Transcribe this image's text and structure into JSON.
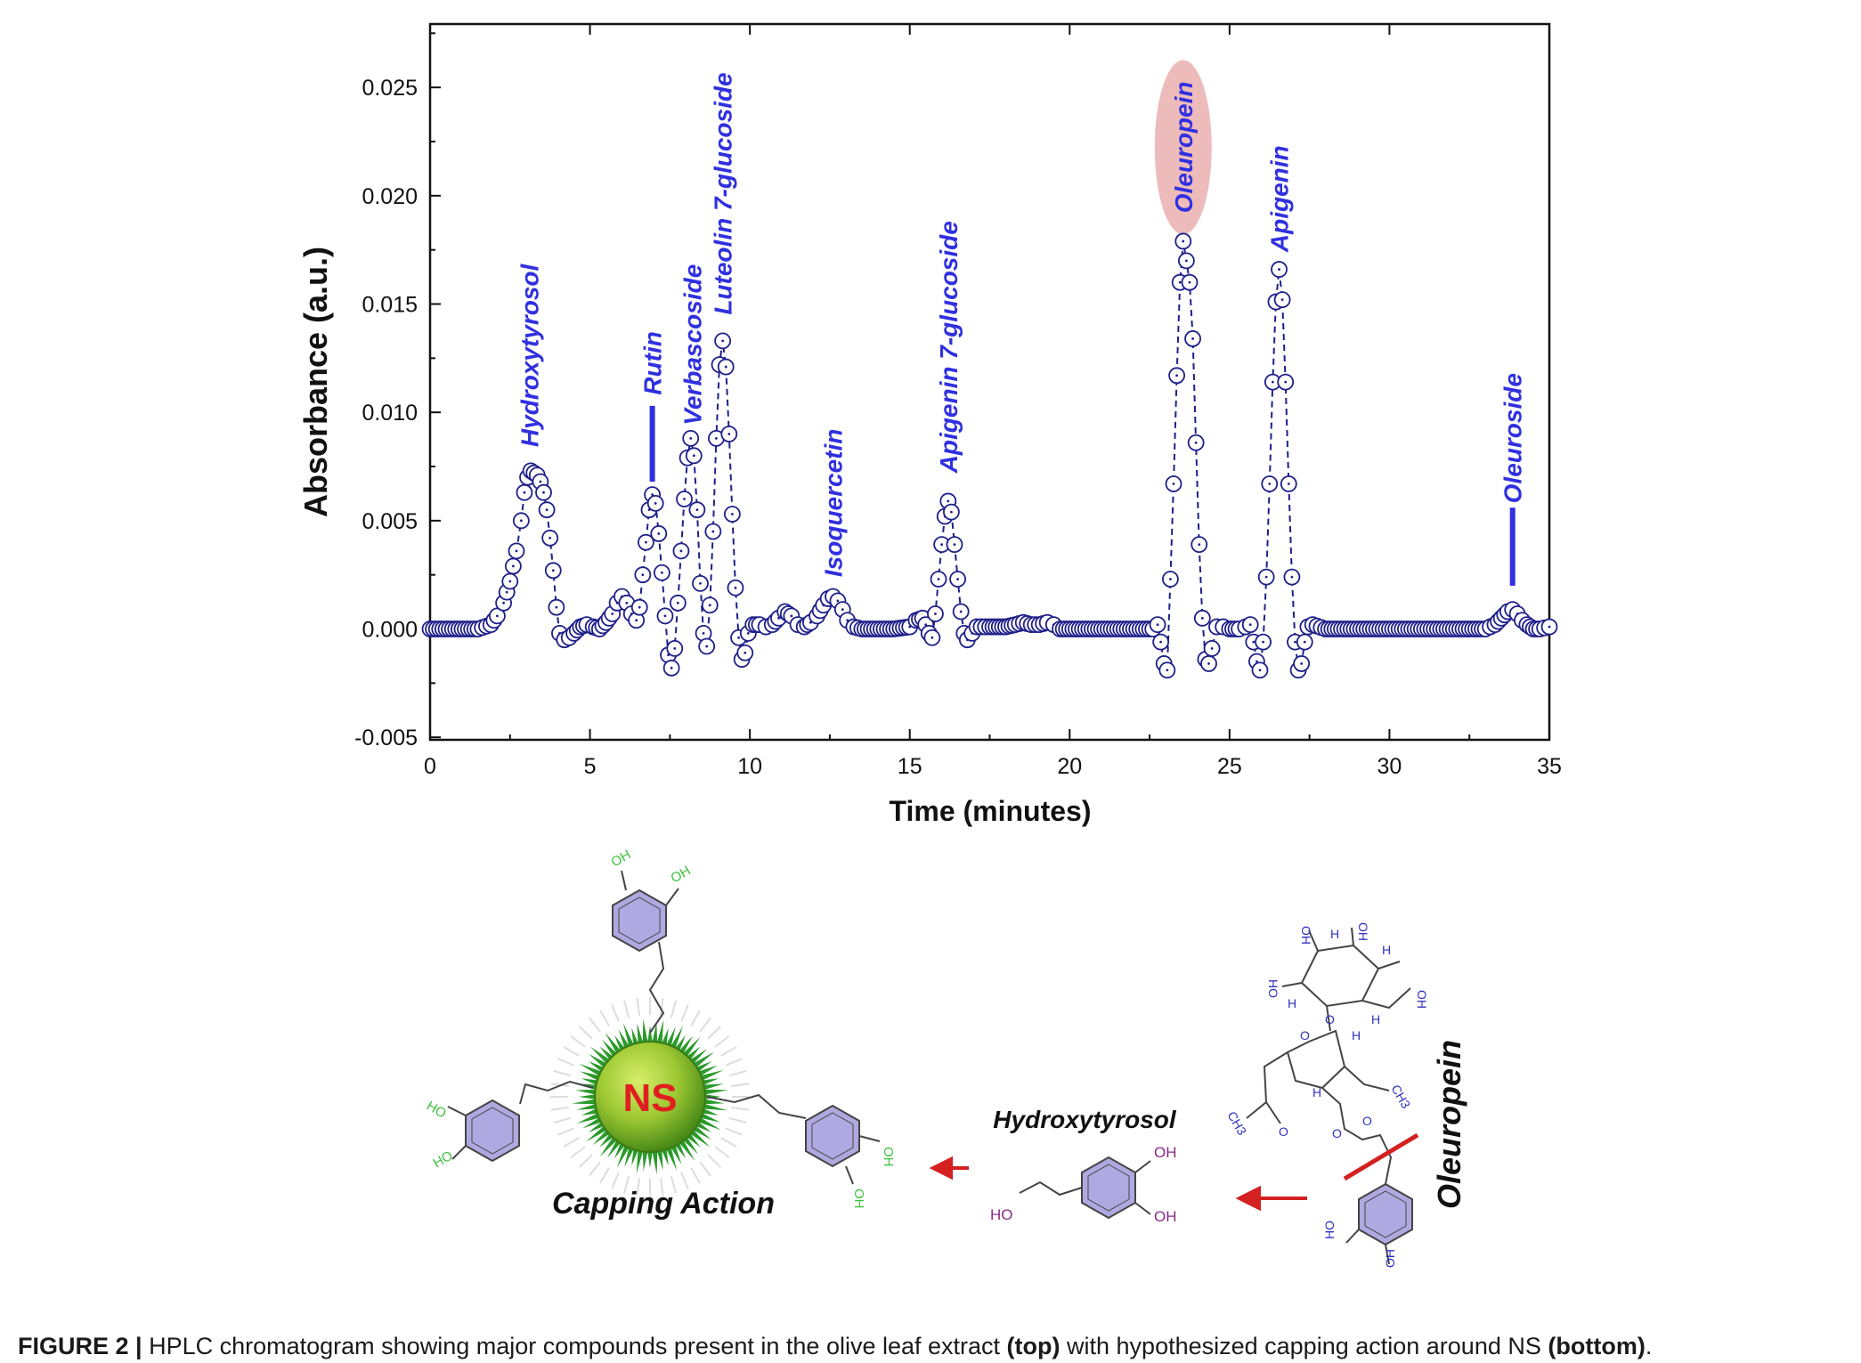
{
  "chart_data": {
    "type": "line",
    "title": "",
    "xlabel": "Time (minutes)",
    "ylabel": "Absorbance (a.u.)",
    "xlim": [
      0,
      35
    ],
    "ylim": [
      -0.005,
      0.028
    ],
    "xticks": [
      0,
      5,
      10,
      15,
      20,
      25,
      30,
      35
    ],
    "xtick_labels": [
      "0",
      "5",
      "10",
      "15",
      "20",
      "25",
      "30",
      "35"
    ],
    "yticks": [
      -0.005,
      0.0,
      0.005,
      0.01,
      0.015,
      0.02,
      0.025
    ],
    "ytick_labels": [
      "-0.005",
      "0.000",
      "0.005",
      "0.010",
      "0.015",
      "0.020",
      "0.025"
    ],
    "grid": false,
    "marker": "open-circle",
    "line_style": "dashed",
    "series_color": "#1f1f8a",
    "label_color": "#3030e0",
    "highlight_color": "#eebbbb",
    "series": [
      {
        "name": "",
        "points": [
          [
            0,
            0
          ],
          [
            1.5,
            0
          ],
          [
            1.9,
            0.0002
          ],
          [
            2.1,
            0.0006
          ],
          [
            2.3,
            0.0012
          ],
          [
            2.5,
            0.0022
          ],
          [
            2.7,
            0.0036
          ],
          [
            2.85,
            0.005
          ],
          [
            2.95,
            0.0063
          ],
          [
            3.05,
            0.007
          ],
          [
            3.15,
            0.0073
          ],
          [
            3.25,
            0.0072
          ],
          [
            3.35,
            0.0071
          ],
          [
            3.45,
            0.0068
          ],
          [
            3.55,
            0.0063
          ],
          [
            3.65,
            0.0055
          ],
          [
            3.75,
            0.0042
          ],
          [
            3.85,
            0.0027
          ],
          [
            3.95,
            0.001
          ],
          [
            4.05,
            -0.0002
          ],
          [
            4.2,
            -0.0005
          ],
          [
            4.35,
            -0.0004
          ],
          [
            4.5,
            -0.0002
          ],
          [
            4.7,
            0.0001
          ],
          [
            4.9,
            0.0002
          ],
          [
            5.1,
            0.0001
          ],
          [
            5.3,
            0
          ],
          [
            5.5,
            0.0003
          ],
          [
            5.7,
            0.0007
          ],
          [
            5.85,
            0.0012
          ],
          [
            6.0,
            0.0015
          ],
          [
            6.15,
            0.0012
          ],
          [
            6.3,
            0.0007
          ],
          [
            6.45,
            0.0004
          ],
          [
            6.55,
            0.001
          ],
          [
            6.65,
            0.0025
          ],
          [
            6.75,
            0.004
          ],
          [
            6.85,
            0.0055
          ],
          [
            6.95,
            0.0062
          ],
          [
            7.05,
            0.0058
          ],
          [
            7.15,
            0.0044
          ],
          [
            7.25,
            0.0026
          ],
          [
            7.35,
            0.0006
          ],
          [
            7.45,
            -0.0012
          ],
          [
            7.55,
            -0.0018
          ],
          [
            7.65,
            -0.0009
          ],
          [
            7.75,
            0.0012
          ],
          [
            7.85,
            0.0036
          ],
          [
            7.95,
            0.006
          ],
          [
            8.05,
            0.0079
          ],
          [
            8.15,
            0.0088
          ],
          [
            8.25,
            0.008
          ],
          [
            8.35,
            0.0055
          ],
          [
            8.45,
            0.0021
          ],
          [
            8.55,
            -0.0002
          ],
          [
            8.65,
            -0.0008
          ],
          [
            8.75,
            0.0011
          ],
          [
            8.85,
            0.0045
          ],
          [
            8.95,
            0.0088
          ],
          [
            9.05,
            0.0122
          ],
          [
            9.15,
            0.0133
          ],
          [
            9.25,
            0.0121
          ],
          [
            9.35,
            0.009
          ],
          [
            9.45,
            0.0053
          ],
          [
            9.55,
            0.0019
          ],
          [
            9.65,
            -0.0004
          ],
          [
            9.75,
            -0.0014
          ],
          [
            9.85,
            -0.0011
          ],
          [
            9.95,
            -0.0002
          ],
          [
            10.1,
            0.0002
          ],
          [
            10.3,
            0.0002
          ],
          [
            10.5,
            0.0001
          ],
          [
            10.7,
            0.0002
          ],
          [
            10.9,
            0.0005
          ],
          [
            11.1,
            0.0008
          ],
          [
            11.3,
            0.0006
          ],
          [
            11.5,
            0.0002
          ],
          [
            11.7,
            0.0001
          ],
          [
            11.9,
            0.0003
          ],
          [
            12.1,
            0.0006
          ],
          [
            12.3,
            0.0011
          ],
          [
            12.45,
            0.0014
          ],
          [
            12.6,
            0.0015
          ],
          [
            12.75,
            0.0013
          ],
          [
            12.9,
            0.0009
          ],
          [
            13.05,
            0.0004
          ],
          [
            13.25,
            0.0001
          ],
          [
            13.5,
            0
          ],
          [
            14.5,
            0
          ],
          [
            15.0,
            0.0001
          ],
          [
            15.2,
            0.0004
          ],
          [
            15.4,
            0.0005
          ],
          [
            15.5,
            0.0002
          ],
          [
            15.6,
            -0.0002
          ],
          [
            15.7,
            -0.0004
          ],
          [
            15.8,
            0.0007
          ],
          [
            15.9,
            0.0023
          ],
          [
            16.0,
            0.0039
          ],
          [
            16.1,
            0.0052
          ],
          [
            16.2,
            0.0059
          ],
          [
            16.3,
            0.0054
          ],
          [
            16.4,
            0.0039
          ],
          [
            16.5,
            0.0023
          ],
          [
            16.6,
            0.0008
          ],
          [
            16.7,
            -0.0002
          ],
          [
            16.8,
            -0.0005
          ],
          [
            16.95,
            -0.0002
          ],
          [
            17.1,
            0.0001
          ],
          [
            17.5,
            0.0001
          ],
          [
            18.0,
            0.0001
          ],
          [
            18.3,
            0.0002
          ],
          [
            18.55,
            0.0003
          ],
          [
            18.8,
            0.0002
          ],
          [
            19.05,
            0.0002
          ],
          [
            19.3,
            0.0003
          ],
          [
            19.5,
            0.0002
          ],
          [
            19.7,
            0
          ],
          [
            20.5,
            0
          ],
          [
            22.6,
            0
          ],
          [
            22.75,
            0.0002
          ],
          [
            22.85,
            -0.0006
          ],
          [
            22.95,
            -0.0016
          ],
          [
            23.05,
            -0.0019
          ],
          [
            23.15,
            0.0023
          ],
          [
            23.25,
            0.0067
          ],
          [
            23.35,
            0.0117
          ],
          [
            23.45,
            0.016
          ],
          [
            23.55,
            0.0179
          ],
          [
            23.65,
            0.017
          ],
          [
            23.75,
            0.016
          ],
          [
            23.85,
            0.0134
          ],
          [
            23.95,
            0.0086
          ],
          [
            24.05,
            0.0039
          ],
          [
            24.15,
            0.0005
          ],
          [
            24.25,
            -0.0014
          ],
          [
            24.35,
            -0.0016
          ],
          [
            24.45,
            -0.0009
          ],
          [
            24.6,
            0.0001
          ],
          [
            24.8,
            0.0001
          ],
          [
            25.0,
            0
          ],
          [
            25.3,
            0
          ],
          [
            25.5,
            0.0001
          ],
          [
            25.65,
            0.0002
          ],
          [
            25.75,
            -0.0006
          ],
          [
            25.85,
            -0.0015
          ],
          [
            25.95,
            -0.0019
          ],
          [
            26.05,
            -0.0006
          ],
          [
            26.15,
            0.0024
          ],
          [
            26.25,
            0.0067
          ],
          [
            26.35,
            0.0114
          ],
          [
            26.45,
            0.0151
          ],
          [
            26.55,
            0.0166
          ],
          [
            26.65,
            0.0152
          ],
          [
            26.75,
            0.0114
          ],
          [
            26.85,
            0.0067
          ],
          [
            26.95,
            0.0024
          ],
          [
            27.05,
            -0.0006
          ],
          [
            27.15,
            -0.0019
          ],
          [
            27.25,
            -0.0016
          ],
          [
            27.35,
            -0.0006
          ],
          [
            27.45,
            0.0001
          ],
          [
            27.6,
            0.0002
          ],
          [
            28.0,
            0
          ],
          [
            33.0,
            0
          ],
          [
            33.3,
            0.0002
          ],
          [
            33.5,
            0.0005
          ],
          [
            33.7,
            0.0008
          ],
          [
            33.85,
            0.0009
          ],
          [
            34.0,
            0.0007
          ],
          [
            34.15,
            0.0004
          ],
          [
            34.3,
            0.0002
          ],
          [
            34.5,
            0
          ],
          [
            34.7,
            0
          ],
          [
            35.0,
            0.0001
          ]
        ]
      }
    ],
    "annotations": [
      {
        "text": "Hydroxytyrosol",
        "x": 3.1,
        "bottom": 0.0084,
        "bar": false
      },
      {
        "text": "Rutin",
        "x": 6.95,
        "bottom": 0.0108,
        "bar": true,
        "bar_from": 0.0068,
        "bar_to": 0.0103
      },
      {
        "text": "Verbascoside",
        "x": 8.2,
        "bottom": 0.0094,
        "bar": false
      },
      {
        "text": "Luteolin 7-glucoside",
        "x": 9.15,
        "bottom": 0.0145,
        "bar": false
      },
      {
        "text": "Isoquercetin",
        "x": 12.6,
        "bottom": 0.0024,
        "bar": false
      },
      {
        "text": "Apigenin 7-glucoside",
        "x": 16.2,
        "bottom": 0.0072,
        "bar": false
      },
      {
        "text": "Oleuropein",
        "x": 23.55,
        "bottom": 0.0192,
        "bar": false,
        "highlight": true
      },
      {
        "text": "Apigenin",
        "x": 26.55,
        "bottom": 0.0174,
        "bar": false
      },
      {
        "text": "Oleuroside",
        "x": 33.85,
        "bottom": 0.0058,
        "bar": true,
        "bar_from": 0.002,
        "bar_to": 0.0056
      }
    ]
  },
  "schematic": {
    "nanoparticle_label": "NS",
    "capping_label": "Capping Action",
    "hydroxytyrosol_label": "Hydroxytyrosol",
    "oleuropein_label": "Oleuropein",
    "oh_label": "OH",
    "ho_label": "HO",
    "h_label": "H",
    "o_label": "O",
    "ch3_label": "CH3",
    "arrow_color": "#d42020",
    "ring_fill": "#b0a8e0",
    "oh_green": "#3cc23c",
    "oh_purple": "#8a2a8a",
    "np_green": "#2a9a2a"
  },
  "caption": {
    "prefix": "FIGURE 2 |",
    "part1": " HPLC chromatogram showing major compounds present in the olive leaf extract ",
    "top": "(top)",
    "part2": " with hypothesized capping action around NS ",
    "bottom": "(bottom)",
    "end": "."
  }
}
